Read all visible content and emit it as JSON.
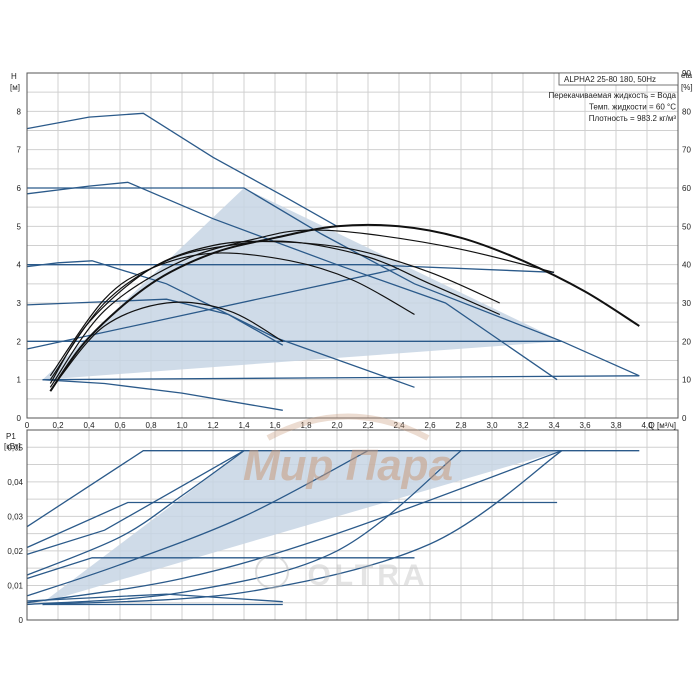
{
  "chart_data": [
    {
      "type": "line",
      "panel": "head",
      "title": "ALPHA2 25-80 180, 50Hz",
      "info_lines": [
        "Перекачиваемая жидкость = Вода",
        "Темп. жидкости = 60 °C",
        "Плотность = 983.2 кг/м³"
      ],
      "ylabel": "H",
      "yunit": "[м]",
      "y2label": "eta",
      "y2unit": "[%]",
      "xlabel": "Q [м³/ч]",
      "xlim": [
        0,
        4.2
      ],
      "ylim": [
        0,
        9
      ],
      "y2lim": [
        0,
        90
      ],
      "xticks": [
        0,
        0.2,
        0.4,
        0.6,
        0.8,
        1.0,
        1.2,
        1.4,
        1.6,
        1.8,
        2.0,
        2.2,
        2.4,
        2.6,
        2.8,
        3.0,
        3.2,
        3.4,
        3.6,
        3.8,
        4.0
      ],
      "xtick_labels": [
        "0",
        "0,2",
        "0,4",
        "0,6",
        "0,8",
        "1,0",
        "1,2",
        "1,4",
        "1,6",
        "1,8",
        "2,0",
        "2,2",
        "2,4",
        "2,6",
        "2,8",
        "3,0",
        "3,2",
        "3,4",
        "3,6",
        "3,8",
        "4,0"
      ],
      "yticks": [
        0,
        1,
        2,
        3,
        4,
        5,
        6,
        7,
        8
      ],
      "ytick_labels": [
        "0",
        "1",
        "2",
        "3",
        "4",
        "5",
        "6",
        "7",
        "8"
      ],
      "y2ticks": [
        0,
        10,
        20,
        30,
        40,
        50,
        60,
        70,
        80,
        90
      ],
      "y2tick_labels": [
        "0",
        "10",
        "20",
        "30",
        "40",
        "50",
        "60",
        "70",
        "80",
        "90"
      ],
      "grid": true,
      "shaded_region": [
        [
          0.1,
          1.0
        ],
        [
          1.4,
          6.0
        ],
        [
          3.45,
          2.0
        ],
        [
          0.1,
          1.0
        ]
      ],
      "series": [
        {
          "role": "pump",
          "points": [
            [
              0,
              7.55
            ],
            [
              0.4,
              7.85
            ],
            [
              0.75,
              7.95
            ],
            [
              1.2,
              6.8
            ],
            [
              1.65,
              5.8
            ],
            [
              2.0,
              5.0
            ]
          ]
        },
        {
          "role": "pump",
          "points": [
            [
              0,
              5.85
            ],
            [
              0.4,
              6.05
            ],
            [
              0.65,
              6.15
            ],
            [
              1.2,
              5.2
            ],
            [
              2.0,
              4.0
            ],
            [
              2.7,
              3.0
            ],
            [
              3.42,
              1.0
            ]
          ]
        },
        {
          "role": "pump",
          "points": [
            [
              0,
              3.95
            ],
            [
              0.2,
              4.05
            ],
            [
              0.42,
              4.1
            ],
            [
              0.9,
              3.5
            ],
            [
              1.6,
              2.1
            ],
            [
              2.5,
              0.8
            ]
          ]
        },
        {
          "role": "pump",
          "points": [
            [
              0,
              2.95
            ],
            [
              0.9,
              3.1
            ],
            [
              1.3,
              2.7
            ],
            [
              1.65,
              1.9
            ]
          ]
        },
        {
          "role": "pump",
          "points": [
            [
              0.1,
              1.0
            ],
            [
              0.5,
              0.9
            ],
            [
              1.0,
              0.65
            ],
            [
              1.65,
              0.2
            ]
          ]
        },
        {
          "role": "pump",
          "points": [
            [
              0,
              6.0
            ],
            [
              1.4,
              6.0
            ],
            [
              1.9,
              4.8
            ],
            [
              2.5,
              3.5
            ],
            [
              3.45,
              2.0
            ],
            [
              3.95,
              1.1
            ]
          ]
        },
        {
          "role": "pump",
          "points": [
            [
              0,
              4.0
            ],
            [
              2.2,
              4.0
            ],
            [
              3.4,
              3.8
            ]
          ]
        },
        {
          "role": "pump",
          "points": [
            [
              0,
              2.0
            ],
            [
              3.45,
              2.0
            ]
          ]
        },
        {
          "role": "pump",
          "points": [
            [
              0.1,
              1.0
            ],
            [
              3.95,
              1.1
            ]
          ]
        },
        {
          "role": "pump",
          "points": [
            [
              0,
              1.8
            ],
            [
              2.4,
              3.9
            ]
          ]
        },
        {
          "role": "eta",
          "points": [
            [
              0.15,
              7.0
            ],
            [
              0.4,
              21.0
            ],
            [
              0.8,
              35.0
            ],
            [
              1.2,
              43.0
            ],
            [
              1.6,
              47.0
            ],
            [
              2.0,
              50.0
            ],
            [
              2.4,
              50.0
            ],
            [
              2.8,
              47.0
            ],
            [
              3.2,
              41.0
            ],
            [
              3.6,
              33.0
            ],
            [
              3.95,
              24.0
            ]
          ]
        },
        {
          "role": "eta",
          "points": [
            [
              0.15,
              8.0
            ],
            [
              0.5,
              28.0
            ],
            [
              1.0,
              41.0
            ],
            [
              1.5,
              47.0
            ],
            [
              1.8,
              49.0
            ],
            [
              2.2,
              48.0
            ],
            [
              2.8,
              44.0
            ],
            [
              3.4,
              38.0
            ]
          ]
        },
        {
          "role": "eta",
          "points": [
            [
              0.15,
              9.0
            ],
            [
              0.4,
              25.0
            ],
            [
              0.8,
              39.0
            ],
            [
              1.2,
              45.0
            ],
            [
              1.6,
              46.0
            ],
            [
              2.1,
              44.0
            ],
            [
              2.6,
              38.0
            ],
            [
              3.05,
              30.0
            ]
          ]
        },
        {
          "role": "eta",
          "points": [
            [
              0.15,
              10.0
            ],
            [
              0.5,
              30.0
            ],
            [
              0.9,
              41.0
            ],
            [
              1.3,
              45.0
            ],
            [
              1.7,
              46.0
            ],
            [
              2.2,
              42.0
            ],
            [
              2.6,
              35.0
            ],
            [
              3.05,
              27.0
            ]
          ]
        },
        {
          "role": "eta",
          "points": [
            [
              0.15,
              11.0
            ],
            [
              0.5,
              31.0
            ],
            [
              0.8,
              39.0
            ],
            [
              1.2,
              43.0
            ],
            [
              1.7,
              41.0
            ],
            [
              2.1,
              36.0
            ],
            [
              2.5,
              27.0
            ]
          ]
        },
        {
          "role": "eta",
          "points": [
            [
              0.2,
              10.0
            ],
            [
              0.5,
              24.0
            ],
            [
              0.9,
              30.0
            ],
            [
              1.3,
              28.0
            ],
            [
              1.65,
              20.0
            ]
          ]
        }
      ]
    },
    {
      "type": "line",
      "panel": "power",
      "ylabel": "P1",
      "yunit": "[кВт]",
      "xlim": [
        0,
        4.2
      ],
      "ylim": [
        0,
        0.055
      ],
      "yticks": [
        0,
        0.01,
        0.02,
        0.03,
        0.04,
        0.05
      ],
      "ytick_labels": [
        "0",
        "0,01",
        "0,02",
        "0,03",
        "0,04",
        "0,05"
      ],
      "grid": true,
      "shaded_region": [
        [
          0.1,
          0.005
        ],
        [
          1.4,
          0.049
        ],
        [
          3.45,
          0.049
        ],
        [
          0.1,
          0.005
        ]
      ],
      "series": [
        {
          "role": "pump",
          "points": [
            [
              0,
              0.027
            ],
            [
              0.75,
              0.049
            ],
            [
              3.95,
              0.049
            ]
          ]
        },
        {
          "role": "pump",
          "points": [
            [
              0,
              0.021
            ],
            [
              0.65,
              0.034
            ],
            [
              3.42,
              0.034
            ]
          ]
        },
        {
          "role": "pump",
          "points": [
            [
              0,
              0.012
            ],
            [
              0.42,
              0.018
            ],
            [
              2.5,
              0.018
            ]
          ]
        },
        {
          "role": "pump",
          "points": [
            [
              0,
              0.0055
            ],
            [
              0.9,
              0.0075
            ],
            [
              1.65,
              0.0053
            ]
          ]
        },
        {
          "role": "pump",
          "points": [
            [
              0.1,
              0.0045
            ],
            [
              1.65,
              0.0045
            ]
          ]
        },
        {
          "role": "pump",
          "points": [
            [
              0,
              0.013
            ],
            [
              0.6,
              0.024
            ],
            [
              1.0,
              0.036
            ],
            [
              1.4,
              0.049
            ]
          ]
        },
        {
          "role": "pump",
          "points": [
            [
              0,
              0.007
            ],
            [
              0.6,
              0.016
            ],
            [
              1.4,
              0.03
            ],
            [
              2.2,
              0.049
            ]
          ]
        },
        {
          "role": "pump",
          "points": [
            [
              0,
              0.005
            ],
            [
              1.0,
              0.012
            ],
            [
              2.0,
              0.025
            ],
            [
              3.45,
              0.049
            ]
          ]
        },
        {
          "role": "pump",
          "points": [
            [
              0.1,
              0.0045
            ],
            [
              1.4,
              0.008
            ],
            [
              2.6,
              0.022
            ],
            [
              3.45,
              0.049
            ]
          ]
        },
        {
          "role": "pump",
          "points": [
            [
              0,
              0.019
            ],
            [
              0.5,
              0.026
            ],
            [
              1.4,
              0.049
            ]
          ]
        },
        {
          "role": "pump",
          "points": [
            [
              0,
              0.0045
            ],
            [
              1.0,
              0.008
            ],
            [
              2.0,
              0.02
            ],
            [
              2.8,
              0.049
            ]
          ]
        }
      ]
    }
  ],
  "watermark": {
    "text": "Мир Пара",
    "subtext": "OLTRA"
  },
  "colors": {
    "curve": "#2b5a8a",
    "shade": "#c7d5e4",
    "eta": "#111111",
    "grid": "#d0d0d0",
    "frame": "#555555",
    "watermark": "#c89a7c"
  }
}
